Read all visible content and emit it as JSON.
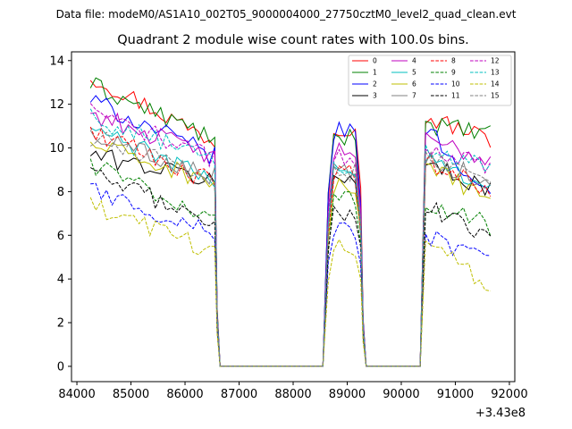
{
  "suptitle": "Data file: modeM0/AS1A10_002T05_9000004000_27750cztM0_level2_quad_clean.evt",
  "chart_data": {
    "type": "line",
    "title": "Quadrant 2 module wise count rates with 100.0s bins.",
    "xlabel": "",
    "ylabel": "",
    "x_offset_label": "+3.43e8",
    "xlim": [
      83900,
      92100
    ],
    "ylim": [
      -0.7,
      14.4
    ],
    "xticks": [
      84000,
      85000,
      86000,
      87000,
      88000,
      89000,
      90000,
      91000,
      92000
    ],
    "xtick_labels": [
      "84000",
      "85000",
      "86000",
      "87000",
      "88000",
      "89000",
      "90000",
      "91000",
      "92000"
    ],
    "yticks": [
      0,
      2,
      4,
      6,
      8,
      10,
      12,
      14
    ],
    "ytick_labels": [
      "0",
      "2",
      "4",
      "6",
      "8",
      "10",
      "12",
      "14"
    ],
    "legend_position": "top-right",
    "bin_seconds": 100,
    "segments": [
      {
        "start": 84250,
        "end": 86550
      },
      {
        "start": 88650,
        "end": 89250
      },
      {
        "start": 90450,
        "end": 91650
      }
    ],
    "series": [
      {
        "name": "0",
        "color": "#ff0000",
        "dash": "solid",
        "levels": [
          13.3,
          11.0,
          11.4
        ],
        "trend": [
          -3.0,
          0.0,
          -1.0
        ]
      },
      {
        "name": "1",
        "color": "#008000",
        "dash": "solid",
        "levels": [
          12.9,
          10.5,
          11.1
        ],
        "trend": [
          -2.5,
          0.0,
          -0.5
        ]
      },
      {
        "name": "2",
        "color": "#0000ff",
        "dash": "solid",
        "levels": [
          12.2,
          10.6,
          11.0
        ],
        "trend": [
          -2.6,
          0.4,
          -3.4
        ]
      },
      {
        "name": "3",
        "color": "#000000",
        "dash": "solid",
        "levels": [
          9.7,
          8.6,
          9.2
        ],
        "trend": [
          -1.2,
          0.0,
          -1.0
        ]
      },
      {
        "name": "4",
        "color": "#bf00bf",
        "dash": "solid",
        "levels": [
          11.6,
          9.8,
          10.3
        ],
        "trend": [
          -2.0,
          0.0,
          -0.8
        ]
      },
      {
        "name": "5",
        "color": "#00bfbf",
        "dash": "solid",
        "levels": [
          10.9,
          9.0,
          9.5
        ],
        "trend": [
          -2.4,
          0.0,
          -1.2
        ]
      },
      {
        "name": "6",
        "color": "#bfbf00",
        "dash": "solid",
        "levels": [
          10.2,
          8.2,
          9.0
        ],
        "trend": [
          -1.8,
          0.0,
          -1.2
        ]
      },
      {
        "name": "7",
        "color": "#808080",
        "dash": "solid",
        "levels": [
          10.7,
          9.1,
          9.5
        ],
        "trend": [
          -2.0,
          0.0,
          -1.0
        ]
      },
      {
        "name": "8",
        "color": "#ff0000",
        "dash": "dashed",
        "levels": [
          10.8,
          8.8,
          9.3
        ],
        "trend": [
          -2.4,
          0.0,
          -1.2
        ]
      },
      {
        "name": "9",
        "color": "#008000",
        "dash": "dashed",
        "levels": [
          9.3,
          7.7,
          7.6
        ],
        "trend": [
          -2.6,
          0.0,
          -1.2
        ]
      },
      {
        "name": "10",
        "color": "#0000ff",
        "dash": "dashed",
        "levels": [
          8.1,
          6.2,
          6.0
        ],
        "trend": [
          -2.0,
          0.0,
          -1.3
        ]
      },
      {
        "name": "11",
        "color": "#000000",
        "dash": "dashed",
        "levels": [
          8.8,
          7.1,
          7.5
        ],
        "trend": [
          -2.2,
          0.0,
          -1.8
        ]
      },
      {
        "name": "12",
        "color": "#bf00bf",
        "dash": "dashed",
        "levels": [
          11.7,
          9.6,
          10.0
        ],
        "trend": [
          -2.2,
          0.0,
          -0.8
        ]
      },
      {
        "name": "13",
        "color": "#00bfbf",
        "dash": "dashed",
        "levels": [
          11.4,
          9.1,
          9.8
        ],
        "trend": [
          -2.0,
          0.0,
          -0.6
        ]
      },
      {
        "name": "14",
        "color": "#bfbf00",
        "dash": "dashed",
        "levels": [
          7.3,
          5.5,
          5.9
        ],
        "trend": [
          -2.0,
          0.0,
          -2.4
        ]
      },
      {
        "name": "15",
        "color": "#808080",
        "dash": "dashed",
        "levels": [
          10.5,
          8.9,
          9.6
        ],
        "trend": [
          -1.8,
          0.0,
          -1.0
        ]
      }
    ]
  }
}
